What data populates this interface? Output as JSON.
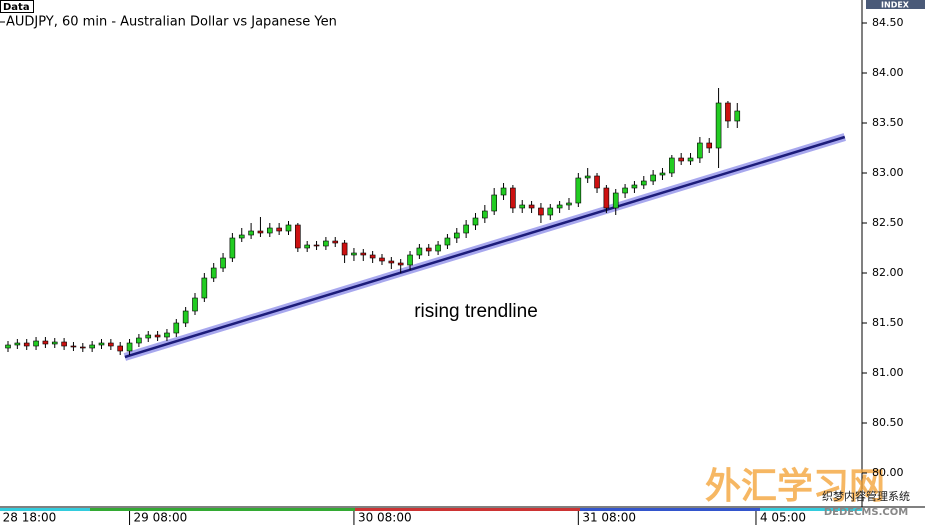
{
  "chart_data": {
    "type": "candlestick",
    "title": "AUDJPY, 60 min - Australian Dollar vs Japanese Yen",
    "data_label": "Data",
    "axis_label": "INDEX",
    "annotation": "rising trendline",
    "watermark": [
      "外汇学习网",
      "织梦内容管理系统",
      "DEDECMS.COM"
    ],
    "up_color": "#22cc22",
    "down_color": "#cc1111",
    "open": [
      81.25,
      81.28,
      81.3,
      81.27,
      81.32,
      81.29,
      81.31,
      81.27,
      81.26,
      81.25,
      81.28,
      81.3,
      81.27,
      81.22,
      81.3,
      81.35,
      81.38,
      81.36,
      81.4,
      81.5,
      81.62,
      81.75,
      81.95,
      82.05,
      82.15,
      82.35,
      82.38,
      82.42,
      82.4,
      82.45,
      82.42,
      82.48,
      82.25,
      82.28,
      82.27,
      82.32,
      82.3,
      82.18,
      82.2,
      82.18,
      82.15,
      82.12,
      82.1,
      82.08,
      82.18,
      82.25,
      82.22,
      82.28,
      82.35,
      82.4,
      82.48,
      82.55,
      82.62,
      82.78,
      82.85,
      82.65,
      82.68,
      82.65,
      82.58,
      82.65,
      82.68,
      82.7,
      82.95,
      82.97,
      82.85,
      82.65,
      82.8,
      82.85,
      82.88,
      82.92,
      82.98,
      83.0,
      83.15,
      83.12,
      83.15,
      83.3,
      83.25,
      83.7,
      83.52
    ],
    "high": [
      81.32,
      81.34,
      81.34,
      81.36,
      81.36,
      81.35,
      81.35,
      81.31,
      81.3,
      81.32,
      81.34,
      81.34,
      81.31,
      81.34,
      81.39,
      81.42,
      81.42,
      81.44,
      81.54,
      81.66,
      81.8,
      82.0,
      82.1,
      82.2,
      82.4,
      82.45,
      82.5,
      82.56,
      82.5,
      82.5,
      82.52,
      82.5,
      82.32,
      82.32,
      82.36,
      82.36,
      82.33,
      82.25,
      82.24,
      82.22,
      82.19,
      82.16,
      82.14,
      82.22,
      82.29,
      82.29,
      82.32,
      82.39,
      82.45,
      82.53,
      82.6,
      82.68,
      82.85,
      82.9,
      82.88,
      82.73,
      82.72,
      82.7,
      82.69,
      82.72,
      82.75,
      83.0,
      83.05,
      83.0,
      82.88,
      82.84,
      82.89,
      82.92,
      82.97,
      83.03,
      83.05,
      83.18,
      83.2,
      83.2,
      83.36,
      83.35,
      83.85,
      83.72,
      83.7
    ],
    "low": [
      81.21,
      81.24,
      81.23,
      81.23,
      81.25,
      81.25,
      81.23,
      81.22,
      81.21,
      81.21,
      81.24,
      81.23,
      81.18,
      81.18,
      81.26,
      81.31,
      81.32,
      81.32,
      81.36,
      81.46,
      81.58,
      81.71,
      81.91,
      82.01,
      82.11,
      82.31,
      82.34,
      82.36,
      82.36,
      82.38,
      82.38,
      82.21,
      82.21,
      82.23,
      82.23,
      82.26,
      82.1,
      82.12,
      82.12,
      82.1,
      82.08,
      82.04,
      82.0,
      82.03,
      82.14,
      82.17,
      82.18,
      82.24,
      82.3,
      82.35,
      82.43,
      82.5,
      82.58,
      82.73,
      82.6,
      82.6,
      82.6,
      82.5,
      82.53,
      82.6,
      82.63,
      82.66,
      82.9,
      82.8,
      82.6,
      82.58,
      82.75,
      82.8,
      82.84,
      82.88,
      82.93,
      82.96,
      83.08,
      83.08,
      83.1,
      83.2,
      83.05,
      83.45,
      83.45
    ],
    "close": [
      81.28,
      81.3,
      81.27,
      81.32,
      81.29,
      81.31,
      81.27,
      81.26,
      81.25,
      81.28,
      81.3,
      81.27,
      81.22,
      81.3,
      81.35,
      81.38,
      81.36,
      81.4,
      81.5,
      81.62,
      81.75,
      81.95,
      82.05,
      82.15,
      82.35,
      82.38,
      82.42,
      82.4,
      82.45,
      82.42,
      82.48,
      82.25,
      82.28,
      82.27,
      82.32,
      82.3,
      82.18,
      82.2,
      82.18,
      82.15,
      82.12,
      82.1,
      82.08,
      82.18,
      82.25,
      82.22,
      82.28,
      82.35,
      82.4,
      82.48,
      82.55,
      82.62,
      82.78,
      82.85,
      82.65,
      82.68,
      82.65,
      82.58,
      82.65,
      82.68,
      82.7,
      82.95,
      82.97,
      82.85,
      82.65,
      82.8,
      82.85,
      82.88,
      82.92,
      82.98,
      83.0,
      83.15,
      83.12,
      83.15,
      83.3,
      83.25,
      83.7,
      83.52,
      83.62
    ],
    "trendline": {
      "x": [
        12.5,
        89.5
      ],
      "y": [
        81.16,
        83.36
      ],
      "color": "#1c1c7a",
      "halo": "#a8a8ee"
    },
    "xlim": [
      -0.856,
      91.34
    ],
    "xticks": [
      {
        "value": -1,
        "label": "28 18:00"
      },
      {
        "value": 13,
        "label": "29 08:00"
      },
      {
        "value": 37,
        "label": "30 08:00"
      },
      {
        "value": 61,
        "label": "31 08:00"
      },
      {
        "value": 80,
        "label": "4 05:00"
      }
    ],
    "ylim": [
      79.68,
      84.73
    ],
    "yticks": [
      {
        "value": 80,
        "label": "80.00"
      },
      {
        "value": 80.5,
        "label": "80.50"
      },
      {
        "value": 81,
        "label": "81.00"
      },
      {
        "value": 81.5,
        "label": "81.50"
      },
      {
        "value": 82,
        "label": "82.00"
      },
      {
        "value": 82.5,
        "label": "82.50"
      },
      {
        "value": 83,
        "label": "83.00"
      },
      {
        "value": 83.5,
        "label": "83.50"
      },
      {
        "value": 84,
        "label": "84.00"
      },
      {
        "value": 84.5,
        "label": "84.50"
      }
    ]
  }
}
